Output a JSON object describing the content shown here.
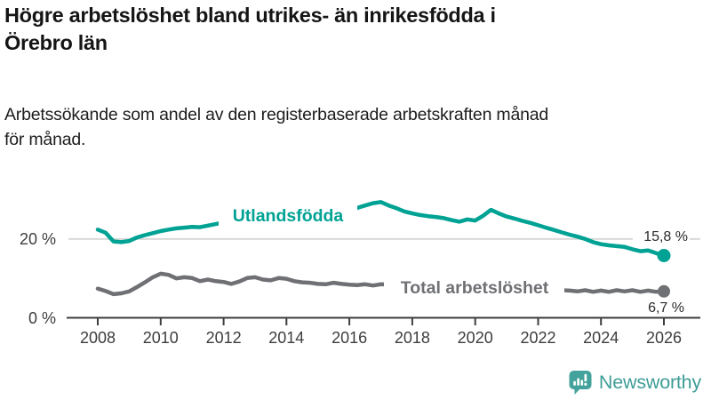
{
  "header": {
    "title_line1": "Högre arbetslöshet bland utrikes- än inrikesfödda i",
    "title_line2": "Örebro län",
    "subtitle_line1": "Arbetssökande som andel av den registerbaserade arbetskraften månad",
    "subtitle_line2": "för månad."
  },
  "chart_data": {
    "type": "line",
    "title": "Högre arbetslöshet bland utrikes- än inrikesfödda i Örebro län",
    "subtitle": "Arbetssökande som andel av den registerbaserade arbetskraften månad för månad.",
    "unit": "%",
    "x_range": [
      2008,
      2026
    ],
    "y_range": [
      0,
      32
    ],
    "grid": "single horizontal gridline at 20 %",
    "legend_position": "inline labels on lines",
    "x_label_ticks": [
      "2008",
      "2010",
      "2012",
      "2014",
      "2016",
      "2018",
      "2020",
      "2022",
      "2024",
      "2026"
    ],
    "y_ticks": [
      {
        "value": 0,
        "label": "0 %"
      },
      {
        "value": 20,
        "label": "20 %"
      }
    ],
    "x": [
      2008,
      2008.25,
      2008.5,
      2008.75,
      2009,
      2009.25,
      2009.5,
      2009.75,
      2010,
      2010.25,
      2010.5,
      2010.75,
      2011,
      2011.25,
      2011.5,
      2011.75,
      2012,
      2012.25,
      2012.5,
      2012.75,
      2013,
      2013.25,
      2013.5,
      2013.75,
      2014,
      2014.25,
      2014.5,
      2014.75,
      2015,
      2015.25,
      2015.5,
      2015.75,
      2016,
      2016.25,
      2016.5,
      2016.75,
      2017,
      2017.25,
      2017.5,
      2017.75,
      2018,
      2018.25,
      2018.5,
      2018.75,
      2019,
      2019.25,
      2019.5,
      2019.75,
      2020,
      2020.25,
      2020.5,
      2020.75,
      2021,
      2021.25,
      2021.5,
      2021.75,
      2022,
      2022.25,
      2022.5,
      2022.75,
      2023,
      2023.25,
      2023.5,
      2023.75,
      2024,
      2024.25,
      2024.5,
      2024.75,
      2025,
      2025.25,
      2025.5,
      2025.75,
      2026
    ],
    "series": [
      {
        "name": "Utlandsfödda",
        "color": "#00a294",
        "end_label": "15,8 %",
        "end_value": 15.8,
        "values": [
          22.4,
          21.6,
          19.4,
          19.2,
          19.5,
          20.4,
          21.0,
          21.5,
          22.0,
          22.4,
          22.7,
          22.9,
          23.1,
          23.0,
          23.4,
          23.8,
          24.2,
          24.4,
          24.6,
          24.8,
          24.9,
          25.0,
          25.1,
          25.2,
          25.3,
          25.4,
          25.5,
          25.6,
          25.8,
          26.0,
          26.3,
          26.7,
          27.2,
          27.9,
          28.5,
          29.1,
          29.4,
          28.5,
          27.8,
          27.0,
          26.5,
          26.1,
          25.8,
          25.6,
          25.3,
          24.8,
          24.4,
          25.0,
          24.7,
          25.9,
          27.4,
          26.5,
          25.7,
          25.2,
          24.6,
          24.1,
          23.5,
          22.9,
          22.3,
          21.7,
          21.1,
          20.6,
          20.0,
          19.2,
          18.7,
          18.4,
          18.2,
          18.0,
          17.4,
          16.9,
          17.1,
          16.4,
          15.8
        ]
      },
      {
        "name": "Total arbetslöshet",
        "color": "#6f7074",
        "end_label": "6,7 %",
        "end_value": 6.7,
        "values": [
          7.4,
          6.8,
          6.0,
          6.2,
          6.7,
          7.8,
          9.0,
          10.3,
          11.2,
          10.9,
          10.0,
          10.3,
          10.1,
          9.3,
          9.7,
          9.3,
          9.1,
          8.6,
          9.2,
          10.1,
          10.3,
          9.7,
          9.5,
          10.1,
          9.9,
          9.3,
          9.0,
          8.9,
          8.6,
          8.5,
          8.9,
          8.6,
          8.4,
          8.3,
          8.5,
          8.2,
          8.5,
          8.4,
          8.2,
          8.0,
          7.9,
          7.7,
          7.6,
          7.5,
          7.4,
          7.4,
          7.5,
          7.7,
          8.0,
          8.9,
          9.3,
          9.0,
          8.7,
          8.4,
          8.0,
          7.7,
          7.4,
          7.2,
          7.0,
          7.0,
          6.9,
          6.7,
          7.0,
          6.6,
          6.9,
          6.6,
          7.0,
          6.7,
          7.0,
          6.6,
          6.9,
          6.6,
          6.7
        ]
      }
    ]
  },
  "footer": {
    "brand": "Newsworthy",
    "brand_color": "#3e9d97"
  }
}
